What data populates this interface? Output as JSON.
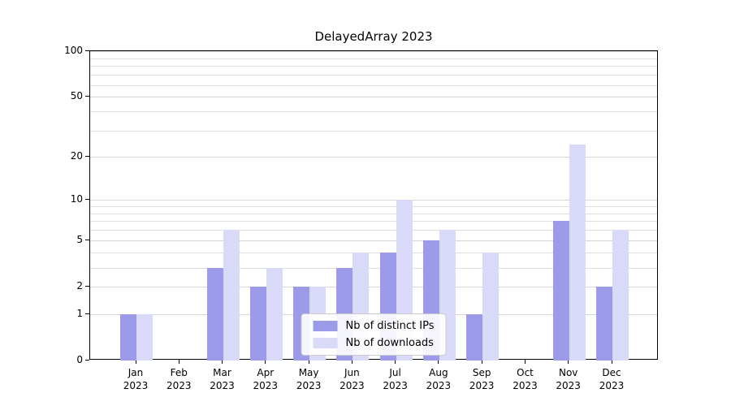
{
  "title": "DelayedArray 2023",
  "chart_data": {
    "type": "bar",
    "title": "DelayedArray 2023",
    "y_scale": "log1p",
    "y_max": 100,
    "y_ticks": [
      0,
      1,
      2,
      5,
      10,
      20,
      50,
      100
    ],
    "gridlines": [
      1,
      2,
      3,
      4,
      5,
      6,
      7,
      8,
      9,
      10,
      20,
      30,
      40,
      50,
      60,
      70,
      80,
      90,
      100
    ],
    "categories": [
      "Jan 2023",
      "Feb 2023",
      "Mar 2023",
      "Apr 2023",
      "May 2023",
      "Jun 2023",
      "Jul 2023",
      "Aug 2023",
      "Sep 2023",
      "Oct 2023",
      "Nov 2023",
      "Dec 2023"
    ],
    "series": [
      {
        "name": "Nb of distinct IPs",
        "color": "#9b9bea",
        "values": [
          1,
          0,
          3,
          2,
          2,
          3,
          4,
          5,
          1,
          0,
          7,
          2
        ]
      },
      {
        "name": "Nb of downloads",
        "color": "#d9d9f8",
        "values": [
          1,
          0,
          6,
          3,
          2,
          4,
          10,
          6,
          4,
          0,
          24,
          6
        ]
      }
    ],
    "legend": {
      "position": "lower center"
    },
    "colors": {
      "grid": "#dedede",
      "axis": "#000000",
      "background": "#ffffff"
    }
  }
}
